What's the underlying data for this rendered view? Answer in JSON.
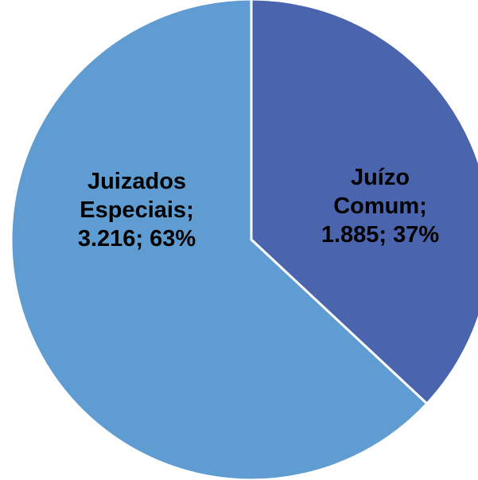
{
  "chart_data": {
    "type": "pie",
    "categories": [
      "Juízo Comum",
      "Juizados Especiais"
    ],
    "values": [
      1885,
      3216
    ],
    "value_labels": [
      "1.885",
      "3.216"
    ],
    "percents": [
      37,
      63
    ],
    "percent_labels": [
      "37%",
      "63%"
    ],
    "separator": ";",
    "colors": [
      "#4a65ae",
      "#5f9cd2"
    ]
  }
}
